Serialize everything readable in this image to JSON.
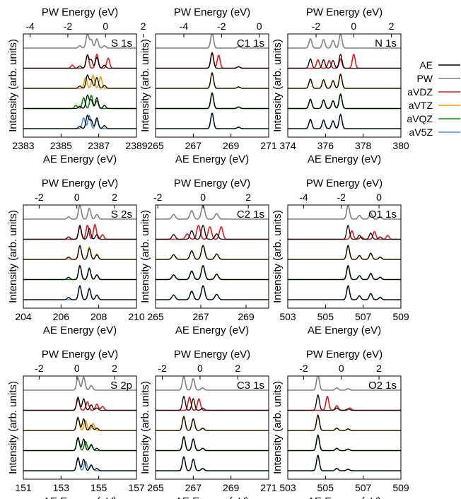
{
  "chart_data": {
    "type": "line",
    "ylabel": "Intensity (arb. units)",
    "legend": {
      "placement": "right",
      "entries": [
        {
          "name": "AE",
          "color": "#000000"
        },
        {
          "name": "PW",
          "color": "#808080"
        },
        {
          "name": "aVDZ",
          "color": "#e41a1c"
        },
        {
          "name": "aVTZ",
          "color": "#f0a000"
        },
        {
          "name": "aVQZ",
          "color": "#0a8a0a"
        },
        {
          "name": "aV5Z",
          "color": "#4a8fd6"
        }
      ]
    },
    "stack_order": [
      "PW",
      "aVDZ",
      "aVTZ",
      "aVQZ",
      "aV5Z"
    ],
    "panels": [
      {
        "label": "S 1s",
        "xlabel_bottom": "AE Energy (eV)",
        "xlabel_top": "PW Energy (eV)",
        "bottom_ticks": [
          "2383",
          "2385",
          "2387",
          "2389"
        ],
        "top_ticks": [
          "-4",
          "-2",
          "0",
          "2"
        ],
        "xlim": [
          2383,
          2389
        ],
        "series": {
          "AE": [
            [
              2386.0,
              0.15
            ],
            [
              2386.4,
              0.85
            ],
            [
              2386.6,
              0.55
            ],
            [
              2386.9,
              0.7
            ],
            [
              2387.3,
              0.2
            ]
          ],
          "PW": [
            [
              2386.0,
              0.15
            ],
            [
              2386.4,
              0.9
            ],
            [
              2386.6,
              0.55
            ],
            [
              2386.9,
              0.6
            ],
            [
              2387.3,
              0.15
            ]
          ],
          "aVDZ": [
            [
              2385.6,
              0.2
            ],
            [
              2386.4,
              0.85
            ],
            [
              2386.9,
              0.9
            ],
            [
              2387.5,
              0.65
            ]
          ],
          "aVTZ": [
            [
              2386.3,
              0.7
            ],
            [
              2386.7,
              0.85
            ],
            [
              2387.1,
              0.75
            ]
          ],
          "aVQZ": [
            [
              2385.8,
              0.2
            ],
            [
              2386.2,
              0.7
            ],
            [
              2386.6,
              0.85
            ],
            [
              2386.9,
              0.5
            ]
          ],
          "aV5Z": [
            [
              2386.2,
              0.7
            ],
            [
              2386.5,
              0.85
            ],
            [
              2386.9,
              0.55
            ]
          ]
        }
      },
      {
        "label": "C1 1s",
        "xlabel_bottom": "AE Energy (eV)",
        "xlabel_top": "PW Energy (eV)",
        "bottom_ticks": [
          "265",
          "267",
          "269",
          "271"
        ],
        "top_ticks": [
          "-4",
          "-2",
          "0"
        ],
        "xlim": [
          265,
          271
        ],
        "series": {
          "AE": [
            [
              268.0,
              1.0
            ],
            [
              269.4,
              0.1
            ]
          ],
          "PW": [
            [
              268.0,
              1.0
            ],
            [
              269.4,
              0.1
            ]
          ],
          "aVDZ": [
            [
              268.0,
              1.0
            ],
            [
              268.35,
              0.85
            ],
            [
              269.4,
              0.1
            ]
          ],
          "aVTZ": [
            [
              268.0,
              1.0
            ],
            [
              269.4,
              0.1
            ]
          ],
          "aVQZ": [
            [
              268.0,
              1.0
            ],
            [
              269.4,
              0.1
            ]
          ],
          "aV5Z": [
            [
              268.0,
              1.0
            ],
            [
              269.4,
              0.1
            ]
          ]
        }
      },
      {
        "label": "N 1s",
        "xlabel_bottom": "AE Energy (eV)",
        "xlabel_top": "PW Energy (eV)",
        "bottom_ticks": [
          "374",
          "376",
          "378",
          "380"
        ],
        "top_ticks": [
          "-2",
          "0",
          "2"
        ],
        "xlim": [
          374,
          380
        ],
        "series": {
          "AE": [
            [
              375.2,
              0.6
            ],
            [
              375.9,
              0.55
            ],
            [
              376.4,
              0.5
            ],
            [
              376.8,
              0.9
            ]
          ],
          "PW": [
            [
              375.2,
              0.6
            ],
            [
              375.9,
              0.55
            ],
            [
              376.4,
              0.5
            ],
            [
              376.8,
              0.9
            ]
          ],
          "aVDZ": [
            [
              375.6,
              0.55
            ],
            [
              376.2,
              0.5
            ],
            [
              376.8,
              0.6
            ],
            [
              377.5,
              0.9
            ]
          ],
          "aVTZ": [
            [
              375.2,
              0.6
            ],
            [
              375.9,
              0.55
            ],
            [
              376.4,
              0.5
            ],
            [
              376.8,
              0.95
            ]
          ],
          "aVQZ": [
            [
              375.2,
              0.6
            ],
            [
              375.9,
              0.55
            ],
            [
              376.4,
              0.5
            ],
            [
              376.8,
              0.95
            ]
          ],
          "aV5Z": [
            [
              375.2,
              0.6
            ],
            [
              375.9,
              0.55
            ],
            [
              376.4,
              0.5
            ],
            [
              376.8,
              0.95
            ]
          ]
        }
      },
      {
        "label": "S 2s",
        "xlabel_bottom": "AE Energy (eV)",
        "xlabel_top": "PW Energy (eV)",
        "bottom_ticks": [
          "204",
          "206",
          "208",
          "210"
        ],
        "top_ticks": [
          "-2",
          "0",
          "2"
        ],
        "xlim": [
          204,
          210
        ],
        "series": {
          "AE": [
            [
              206.4,
              0.15
            ],
            [
              207.0,
              0.9
            ],
            [
              207.5,
              0.7
            ],
            [
              207.9,
              0.3
            ]
          ],
          "PW": [
            [
              206.4,
              0.15
            ],
            [
              207.0,
              0.9
            ],
            [
              207.5,
              0.7
            ],
            [
              207.9,
              0.3
            ]
          ],
          "aVDZ": [
            [
              207.0,
              0.8
            ],
            [
              207.4,
              0.9
            ],
            [
              207.8,
              0.95
            ],
            [
              208.2,
              0.3
            ]
          ],
          "aVTZ": [
            [
              207.0,
              0.85
            ],
            [
              207.5,
              0.8
            ],
            [
              207.9,
              0.35
            ]
          ],
          "aVQZ": [
            [
              207.0,
              0.9
            ],
            [
              207.5,
              0.75
            ],
            [
              207.9,
              0.3
            ]
          ],
          "aV5Z": [
            [
              207.0,
              0.9
            ],
            [
              207.5,
              0.75
            ],
            [
              207.9,
              0.3
            ]
          ]
        }
      },
      {
        "label": "C2 1s",
        "xlabel_bottom": "AE Energy (eV)",
        "xlabel_top": "PW Energy (eV)",
        "bottom_ticks": [
          "265",
          "267",
          "269"
        ],
        "top_ticks": [
          "-2",
          "0",
          "2"
        ],
        "xlim": [
          265,
          270
        ],
        "series": {
          "AE": [
            [
              265.8,
              0.3
            ],
            [
              266.6,
              0.55
            ],
            [
              267.1,
              0.9
            ],
            [
              267.7,
              0.35
            ]
          ],
          "PW": [
            [
              265.8,
              0.3
            ],
            [
              266.6,
              0.55
            ],
            [
              267.1,
              0.9
            ],
            [
              267.7,
              0.35
            ]
          ],
          "aVDZ": [
            [
              266.4,
              0.35
            ],
            [
              266.9,
              0.9
            ],
            [
              267.4,
              0.8
            ],
            [
              267.9,
              0.8
            ]
          ],
          "aVTZ": [
            [
              265.8,
              0.3
            ],
            [
              266.6,
              0.55
            ],
            [
              267.1,
              0.9
            ],
            [
              267.7,
              0.35
            ]
          ],
          "aVQZ": [
            [
              265.8,
              0.3
            ],
            [
              266.6,
              0.55
            ],
            [
              267.1,
              0.9
            ],
            [
              267.7,
              0.35
            ]
          ],
          "aV5Z": [
            [
              265.8,
              0.3
            ],
            [
              266.6,
              0.55
            ],
            [
              267.1,
              0.9
            ],
            [
              267.7,
              0.35
            ]
          ]
        }
      },
      {
        "label": "O1 1s",
        "xlabel_bottom": "AE Energy (eV)",
        "xlabel_top": "PW Energy (eV)",
        "bottom_ticks": [
          "503",
          "505",
          "507",
          "509"
        ],
        "top_ticks": [
          "-4",
          "-2",
          "0"
        ],
        "xlim": [
          503,
          509
        ],
        "series": {
          "AE": [
            [
              506.2,
              0.9
            ],
            [
              506.8,
              0.25
            ],
            [
              507.4,
              0.4
            ],
            [
              507.9,
              0.15
            ]
          ],
          "PW": [
            [
              506.2,
              0.9
            ],
            [
              506.8,
              0.25
            ],
            [
              507.4,
              0.4
            ],
            [
              507.9,
              0.15
            ]
          ],
          "aVDZ": [
            [
              506.4,
              0.55
            ],
            [
              506.9,
              0.15
            ],
            [
              507.6,
              0.5
            ],
            [
              508.3,
              0.25
            ]
          ],
          "aVTZ": [
            [
              506.2,
              0.9
            ],
            [
              506.8,
              0.25
            ],
            [
              507.4,
              0.4
            ],
            [
              507.9,
              0.15
            ]
          ],
          "aVQZ": [
            [
              506.2,
              0.9
            ],
            [
              506.8,
              0.25
            ],
            [
              507.4,
              0.4
            ],
            [
              507.9,
              0.15
            ]
          ],
          "aV5Z": [
            [
              506.2,
              0.9
            ],
            [
              506.8,
              0.25
            ],
            [
              507.4,
              0.4
            ],
            [
              507.9,
              0.15
            ]
          ]
        }
      },
      {
        "label": "S 2p",
        "xlabel_bottom": "AE Energy (eV)",
        "xlabel_top": "PW Energy (eV)",
        "bottom_ticks": [
          "151",
          "153",
          "155",
          "157"
        ],
        "top_ticks": [
          "-2",
          "0",
          "2"
        ],
        "xlim": [
          151,
          157
        ],
        "series": {
          "AE": [
            [
              153.9,
              0.85
            ],
            [
              154.2,
              0.75
            ],
            [
              154.6,
              0.35
            ],
            [
              154.9,
              0.15
            ]
          ],
          "PW": [
            [
              153.9,
              0.8
            ],
            [
              154.2,
              0.85
            ],
            [
              154.6,
              0.3
            ]
          ],
          "aVDZ": [
            [
              153.9,
              0.75
            ],
            [
              154.4,
              0.55
            ],
            [
              154.9,
              0.4
            ],
            [
              155.2,
              0.25
            ]
          ],
          "aVTZ": [
            [
              153.9,
              0.8
            ],
            [
              154.3,
              0.65
            ],
            [
              154.7,
              0.45
            ]
          ],
          "aVQZ": [
            [
              153.9,
              0.8
            ],
            [
              154.3,
              0.6
            ],
            [
              154.6,
              0.4
            ]
          ],
          "aV5Z": [
            [
              153.9,
              0.8
            ],
            [
              154.3,
              0.6
            ],
            [
              154.6,
              0.4
            ]
          ]
        }
      },
      {
        "label": "C3 1s",
        "xlabel_bottom": "AE Energy (eV)",
        "xlabel_top": "PW Energy (eV)",
        "bottom_ticks": [
          "265",
          "267",
          "269",
          "271"
        ],
        "top_ticks": [
          "-2",
          "0",
          "2"
        ],
        "xlim": [
          265,
          271
        ],
        "series": {
          "AE": [
            [
              266.5,
              0.9
            ],
            [
              267.0,
              0.75
            ],
            [
              267.5,
              0.15
            ]
          ],
          "PW": [
            [
              266.5,
              0.9
            ],
            [
              267.0,
              0.75
            ],
            [
              267.5,
              0.15
            ]
          ],
          "aVDZ": [
            [
              266.8,
              0.85
            ],
            [
              267.3,
              0.75
            ]
          ],
          "aVTZ": [
            [
              266.5,
              0.9
            ],
            [
              267.0,
              0.75
            ],
            [
              267.5,
              0.15
            ]
          ],
          "aVQZ": [
            [
              266.5,
              0.9
            ],
            [
              267.0,
              0.75
            ],
            [
              267.5,
              0.15
            ]
          ],
          "aV5Z": [
            [
              266.5,
              0.9
            ],
            [
              267.0,
              0.75
            ],
            [
              267.5,
              0.15
            ]
          ]
        }
      },
      {
        "label": "O2 1s",
        "xlabel_bottom": "AE Energy (eV)",
        "xlabel_top": "PW Energy (eV)",
        "bottom_ticks": [
          "503",
          "505",
          "507",
          "509"
        ],
        "top_ticks": [
          "-2",
          "0",
          "2"
        ],
        "xlim": [
          503,
          509
        ],
        "series": {
          "AE": [
            [
              504.6,
              1.0
            ],
            [
              505.6,
              0.15
            ],
            [
              506.2,
              0.1
            ]
          ],
          "PW": [
            [
              504.6,
              1.0
            ],
            [
              505.6,
              0.15
            ],
            [
              506.2,
              0.1
            ]
          ],
          "aVDZ": [
            [
              505.1,
              0.9
            ],
            [
              505.6,
              0.3
            ],
            [
              506.3,
              0.15
            ]
          ],
          "aVTZ": [
            [
              504.6,
              1.0
            ],
            [
              505.6,
              0.15
            ],
            [
              506.2,
              0.1
            ]
          ],
          "aVQZ": [
            [
              504.6,
              1.0
            ],
            [
              505.6,
              0.15
            ],
            [
              506.2,
              0.1
            ]
          ],
          "aV5Z": [
            [
              504.6,
              1.0
            ],
            [
              505.6,
              0.15
            ],
            [
              506.2,
              0.1
            ]
          ]
        }
      }
    ]
  }
}
